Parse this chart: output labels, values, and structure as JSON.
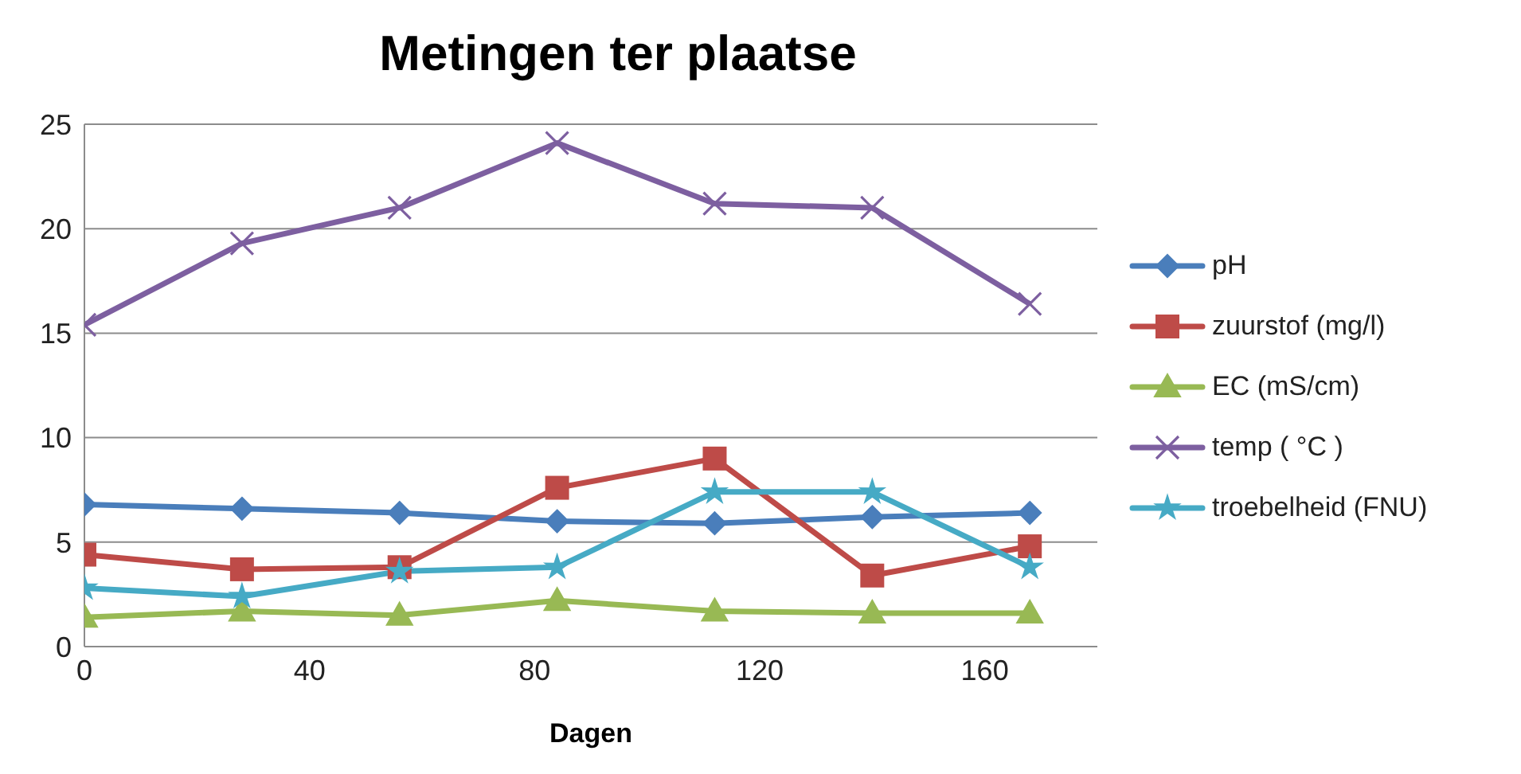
{
  "chart_data": {
    "type": "line",
    "title": "Metingen ter plaatse",
    "xlabel": "Dagen",
    "x": [
      0,
      28,
      56,
      84,
      112,
      140,
      168
    ],
    "series": [
      {
        "name": "pH",
        "color": "#4a7ebb",
        "marker": "diamond",
        "values": [
          6.8,
          6.6,
          6.4,
          6.0,
          5.9,
          6.2,
          6.4
        ]
      },
      {
        "name": "zuurstof (mg/l)",
        "color": "#be4b48",
        "marker": "square",
        "values": [
          4.4,
          3.7,
          3.8,
          7.6,
          9.0,
          3.4,
          4.8
        ]
      },
      {
        "name": "EC (mS/cm)",
        "color": "#98b954",
        "marker": "triangle",
        "values": [
          1.4,
          1.7,
          1.5,
          2.2,
          1.7,
          1.6,
          1.6
        ]
      },
      {
        "name": "temp ( °C )",
        "color": "#7d5fa0",
        "marker": "cross",
        "values": [
          15.4,
          19.3,
          21.0,
          24.1,
          21.2,
          21.0,
          16.4
        ]
      },
      {
        "name": "troebelheid (FNU)",
        "color": "#46aac5",
        "marker": "star",
        "values": [
          2.8,
          2.4,
          3.6,
          3.8,
          7.4,
          7.4,
          3.8
        ]
      }
    ],
    "xlim": [
      0,
      180
    ],
    "xticks": [
      0,
      40,
      80,
      120,
      160
    ],
    "ylim": [
      0,
      25
    ],
    "yticks": [
      0,
      5,
      10,
      15,
      20,
      25
    ],
    "grid": "y",
    "legend": "right",
    "line_style": "solid"
  }
}
